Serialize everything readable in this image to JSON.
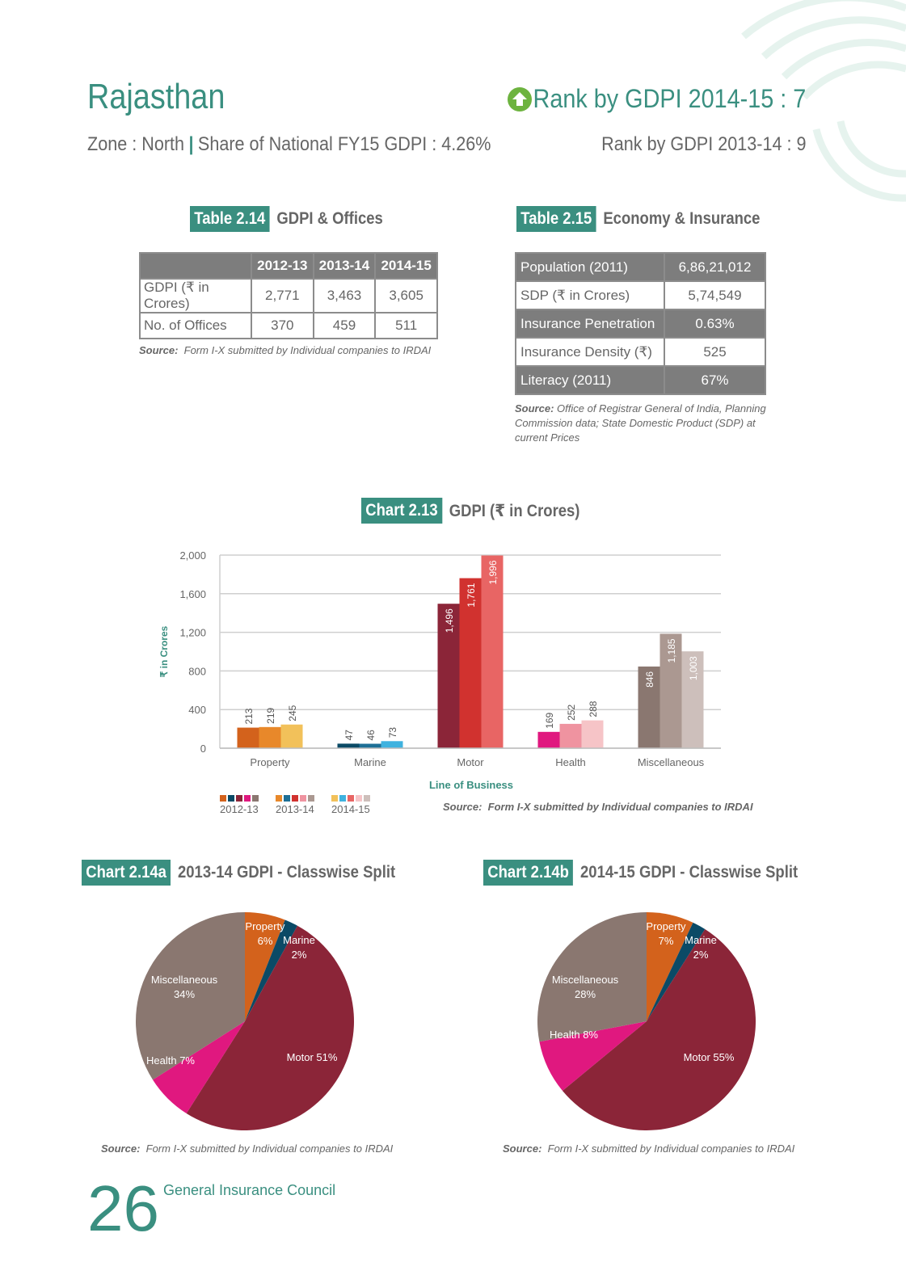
{
  "header": {
    "state": "Rajasthan",
    "rank_current": "Rank by GDPI 2014-15 : 7",
    "zone": "Zone : North",
    "share": "Share of National FY15 GDPI : 4.26%",
    "rank_previous": "Rank by GDPI 2013-14 : 9"
  },
  "table_2_14": {
    "tag": "Table 2.14",
    "title": "GDPI & Offices",
    "columns": [
      "2012-13",
      "2013-14",
      "2014-15"
    ],
    "rows": [
      {
        "label": "GDPI (₹ in Crores)",
        "values": [
          "2,771",
          "3,463",
          "3,605"
        ]
      },
      {
        "label": "No. of Offices",
        "values": [
          "370",
          "459",
          "511"
        ]
      }
    ],
    "source_label": "Source:",
    "source_text": "Form I-X submitted by Individual companies to IRDAI"
  },
  "table_2_15": {
    "tag": "Table 2.15",
    "title": "Economy & Insurance",
    "rows": [
      {
        "label": "Population (2011)",
        "value": "6,86,21,012"
      },
      {
        "label": "SDP (₹ in Crores)",
        "value": "5,74,549"
      },
      {
        "label": "Insurance Penetration",
        "value": "0.63%"
      },
      {
        "label": "Insurance Density (₹)",
        "value": "525"
      },
      {
        "label": "Literacy (2011)",
        "value": "67%"
      }
    ],
    "source_label": "Source:",
    "source_line1": "Office of Registrar General of India, Planning",
    "source_line2": "Commission data; State Domestic Product (SDP) at",
    "source_line3": "current Prices"
  },
  "chart_data": [
    {
      "type": "bar",
      "tag": "Chart 2.13",
      "title": "GDPI (₹ in Crores)",
      "xlabel": "Line of Business",
      "ylabel": "₹ in Crores",
      "ylim": [
        0,
        2000
      ],
      "yticks": [
        "0",
        "400",
        "800",
        "1,200",
        "1,600",
        "2,000"
      ],
      "categories": [
        "Property",
        "Marine",
        "Motor",
        "Health",
        "Miscellaneous"
      ],
      "series": [
        {
          "name": "2012-13",
          "values": [
            213,
            47,
            1496,
            169,
            846
          ],
          "labels": [
            "213",
            "47",
            "1,496",
            "169",
            "846"
          ]
        },
        {
          "name": "2013-14",
          "values": [
            219,
            46,
            1761,
            252,
            1185
          ],
          "labels": [
            "219",
            "46",
            "1,761",
            "252",
            "1,185"
          ]
        },
        {
          "name": "2014-15",
          "values": [
            245,
            73,
            1996,
            288,
            1003
          ],
          "labels": [
            "245",
            "73",
            "1,996",
            "288",
            "1,003"
          ]
        }
      ],
      "colors": [
        [
          "#d3621c",
          "#0b4a66",
          "#8b2538",
          "#e0187f",
          "#8a7770"
        ],
        [
          "#e8882a",
          "#1d6f96",
          "#d1322f",
          "#ef93a0",
          "#ab9891"
        ],
        [
          "#f2c15a",
          "#3fb2df",
          "#e86564",
          "#f6c4c7",
          "#cdbfbb"
        ]
      ],
      "grid": true,
      "legend": "bottom-left",
      "source_label": "Source:",
      "source_text": "Form I-X submitted by Individual companies to IRDAI"
    },
    {
      "type": "pie",
      "tag": "Chart 2.14a",
      "title": "2013-14 GDPI - Classwise Split",
      "slices": [
        {
          "name": "Property",
          "value": 6,
          "label": "6%",
          "color": "#d3621c"
        },
        {
          "name": "Marine",
          "value": 2,
          "label": "2%",
          "color": "#0b4a66"
        },
        {
          "name": "Motor",
          "value": 51,
          "label": "Motor 51%",
          "color": "#8b2538"
        },
        {
          "name": "Health",
          "value": 7,
          "label": "Health 7%",
          "color": "#e0187f"
        },
        {
          "name": "Miscellaneous",
          "value": 34,
          "label": "34%",
          "color": "#8a7770"
        }
      ],
      "source_label": "Source:",
      "source_text": "Form I-X submitted by Individual companies to IRDAI"
    },
    {
      "type": "pie",
      "tag": "Chart 2.14b",
      "title": "2014-15 GDPI - Classwise Split",
      "slices": [
        {
          "name": "Property",
          "value": 7,
          "label": "7%",
          "color": "#d3621c"
        },
        {
          "name": "Marine",
          "value": 2,
          "label": "2%",
          "color": "#0b4a66"
        },
        {
          "name": "Motor",
          "value": 55,
          "label": "Motor 55%",
          "color": "#8b2538"
        },
        {
          "name": "Health",
          "value": 8,
          "label": "Health 8%",
          "color": "#e0187f"
        },
        {
          "name": "Miscellaneous",
          "value": 28,
          "label": "28%",
          "color": "#8a7770"
        }
      ],
      "source_label": "Source:",
      "source_text": "Form I-X submitted by Individual companies to IRDAI"
    }
  ],
  "footer": {
    "page_number": "26",
    "publisher": "General Insurance Council"
  },
  "theme": {
    "accent": "#3a8f80",
    "rank_icon": "up-arrow-circle-icon",
    "rank_icon_color": "#6db33f"
  }
}
